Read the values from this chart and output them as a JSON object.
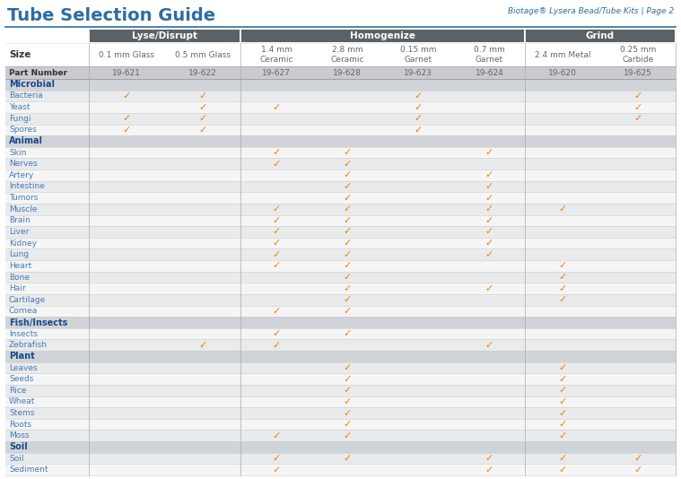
{
  "title": "Tube Selection Guide",
  "subtitle": "Biotage® Lysera Bead/Tube Kits | Page 2",
  "col_headers": [
    "",
    "0.1 mm Glass",
    "0.5 mm Glass",
    "1.4 mm\nCeramic",
    "2.8 mm\nCeramic",
    "0.15 mm\nGarnet",
    "0.7 mm\nGarnet",
    "2.4 mm Metal",
    "0.25 mm\nCarbide"
  ],
  "part_numbers": [
    "",
    "19-621",
    "19-622",
    "19-627",
    "19-628",
    "19-623",
    "19-624",
    "19-620",
    "19-625"
  ],
  "groups": [
    {
      "label": "Lyse/Disrupt",
      "start": 1,
      "end": 3
    },
    {
      "label": "Homogenize",
      "start": 3,
      "end": 7
    },
    {
      "label": "Grind",
      "start": 7,
      "end": 9
    }
  ],
  "rows": [
    {
      "label": "Microbial",
      "bold": true,
      "checks": [
        0,
        0,
        0,
        0,
        0,
        0,
        0,
        0,
        0
      ]
    },
    {
      "label": "Bacteria",
      "bold": false,
      "checks": [
        0,
        1,
        1,
        0,
        0,
        1,
        0,
        0,
        1
      ]
    },
    {
      "label": "Yeast",
      "bold": false,
      "checks": [
        0,
        0,
        1,
        1,
        0,
        1,
        0,
        0,
        1
      ]
    },
    {
      "label": "Fungi",
      "bold": false,
      "checks": [
        0,
        1,
        1,
        0,
        0,
        1,
        0,
        0,
        1
      ]
    },
    {
      "label": "Spores",
      "bold": false,
      "checks": [
        0,
        1,
        1,
        0,
        0,
        1,
        0,
        0,
        0
      ]
    },
    {
      "label": "Animal",
      "bold": true,
      "checks": [
        0,
        0,
        0,
        0,
        0,
        0,
        0,
        0,
        0
      ]
    },
    {
      "label": "Skin",
      "bold": false,
      "checks": [
        0,
        0,
        0,
        1,
        1,
        0,
        1,
        0,
        0
      ]
    },
    {
      "label": "Nerves",
      "bold": false,
      "checks": [
        0,
        0,
        0,
        1,
        1,
        0,
        0,
        0,
        0
      ]
    },
    {
      "label": "Artery",
      "bold": false,
      "checks": [
        0,
        0,
        0,
        0,
        1,
        0,
        1,
        0,
        0
      ]
    },
    {
      "label": "Intestine",
      "bold": false,
      "checks": [
        0,
        0,
        0,
        0,
        1,
        0,
        1,
        0,
        0
      ]
    },
    {
      "label": "Tumors",
      "bold": false,
      "checks": [
        0,
        0,
        0,
        0,
        1,
        0,
        1,
        0,
        0
      ]
    },
    {
      "label": "Muscle",
      "bold": false,
      "checks": [
        0,
        0,
        0,
        1,
        1,
        0,
        1,
        1,
        0
      ]
    },
    {
      "label": "Brain",
      "bold": false,
      "checks": [
        0,
        0,
        0,
        1,
        1,
        0,
        1,
        0,
        0
      ]
    },
    {
      "label": "Liver",
      "bold": false,
      "checks": [
        0,
        0,
        0,
        1,
        1,
        0,
        1,
        0,
        0
      ]
    },
    {
      "label": "Kidney",
      "bold": false,
      "checks": [
        0,
        0,
        0,
        1,
        1,
        0,
        1,
        0,
        0
      ]
    },
    {
      "label": "Lung",
      "bold": false,
      "checks": [
        0,
        0,
        0,
        1,
        1,
        0,
        1,
        0,
        0
      ]
    },
    {
      "label": "Heart",
      "bold": false,
      "checks": [
        0,
        0,
        0,
        1,
        1,
        0,
        0,
        1,
        0
      ]
    },
    {
      "label": "Bone",
      "bold": false,
      "checks": [
        0,
        0,
        0,
        0,
        1,
        0,
        0,
        1,
        0
      ]
    },
    {
      "label": "Hair",
      "bold": false,
      "checks": [
        0,
        0,
        0,
        0,
        1,
        0,
        1,
        1,
        0
      ]
    },
    {
      "label": "Cartilage",
      "bold": false,
      "checks": [
        0,
        0,
        0,
        0,
        1,
        0,
        0,
        1,
        0
      ]
    },
    {
      "label": "Cornea",
      "bold": false,
      "checks": [
        0,
        0,
        0,
        1,
        1,
        0,
        0,
        0,
        0
      ]
    },
    {
      "label": "Fish/Insects",
      "bold": true,
      "checks": [
        0,
        0,
        0,
        0,
        0,
        0,
        0,
        0,
        0
      ]
    },
    {
      "label": "Insects",
      "bold": false,
      "checks": [
        0,
        0,
        0,
        1,
        1,
        0,
        0,
        0,
        0
      ]
    },
    {
      "label": "Zebrafish",
      "bold": false,
      "checks": [
        0,
        0,
        1,
        1,
        0,
        0,
        1,
        0,
        0
      ]
    },
    {
      "label": "Plant",
      "bold": true,
      "checks": [
        0,
        0,
        0,
        0,
        0,
        0,
        0,
        0,
        0
      ]
    },
    {
      "label": "Leaves",
      "bold": false,
      "checks": [
        0,
        0,
        0,
        0,
        1,
        0,
        0,
        1,
        0
      ]
    },
    {
      "label": "Seeds",
      "bold": false,
      "checks": [
        0,
        0,
        0,
        0,
        1,
        0,
        0,
        1,
        0
      ]
    },
    {
      "label": "Rice",
      "bold": false,
      "checks": [
        0,
        0,
        0,
        0,
        1,
        0,
        0,
        1,
        0
      ]
    },
    {
      "label": "Wheat",
      "bold": false,
      "checks": [
        0,
        0,
        0,
        0,
        1,
        0,
        0,
        1,
        0
      ]
    },
    {
      "label": "Stems",
      "bold": false,
      "checks": [
        0,
        0,
        0,
        0,
        1,
        0,
        0,
        1,
        0
      ]
    },
    {
      "label": "Roots",
      "bold": false,
      "checks": [
        0,
        0,
        0,
        0,
        1,
        0,
        0,
        1,
        0
      ]
    },
    {
      "label": "Moss",
      "bold": false,
      "checks": [
        0,
        0,
        0,
        1,
        1,
        0,
        0,
        1,
        0
      ]
    },
    {
      "label": "Soil",
      "bold": true,
      "checks": [
        0,
        0,
        0,
        0,
        0,
        0,
        0,
        0,
        0
      ]
    },
    {
      "label": "Soil",
      "bold": false,
      "checks": [
        0,
        0,
        0,
        1,
        1,
        0,
        1,
        1,
        1
      ]
    },
    {
      "label": "Sediment",
      "bold": false,
      "checks": [
        0,
        0,
        0,
        1,
        0,
        0,
        1,
        1,
        1
      ]
    }
  ],
  "check_color": "#f0820a",
  "header_bg": "#5c6166",
  "header_text": "#ffffff",
  "part_row_bg": "#c8ccd0",
  "alt_row_bg": "#e8eaec",
  "white_row_bg": "#f5f5f5",
  "bold_row_bg": "#d0d4d8",
  "title_color": "#2e6da4",
  "subtitle_color": "#2e6da4",
  "row_label_color": "#4a7ab5",
  "bold_label_color": "#1a4a8a",
  "size_label_color": "#666666",
  "part_num_color": "#666666"
}
